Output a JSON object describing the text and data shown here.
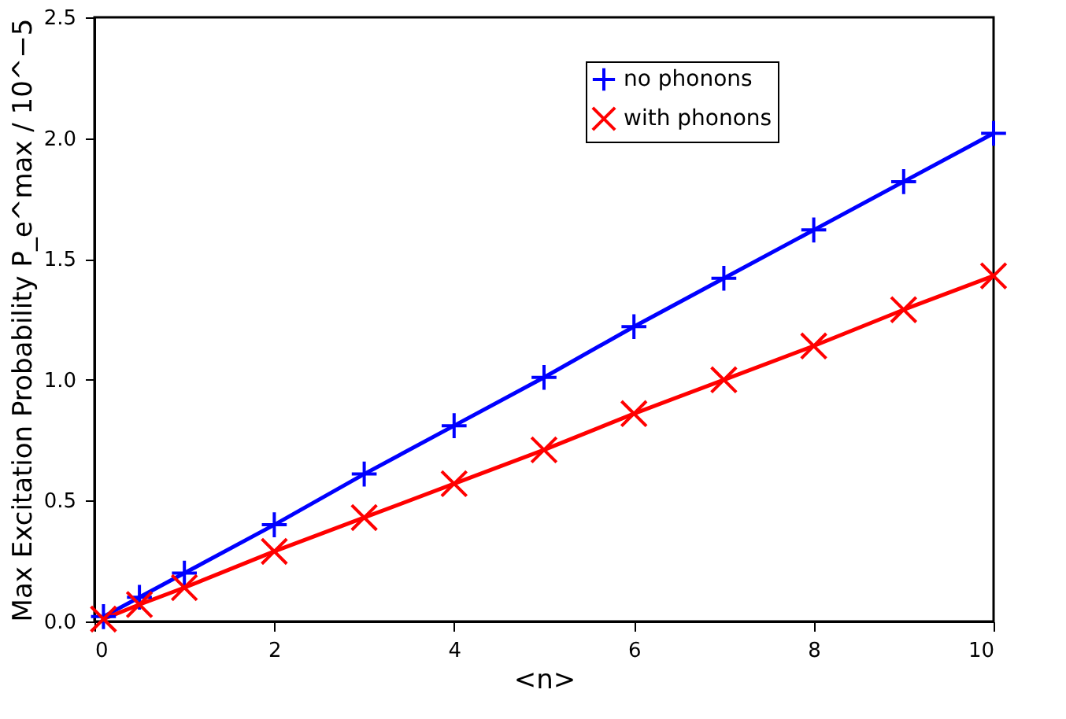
{
  "chart_data": {
    "type": "line",
    "xlabel": "<n>",
    "ylabel": "Max Excitation Probability P_e^max / 10^−5",
    "xlim": [
      0,
      10
    ],
    "xticks": [
      0,
      2,
      4,
      6,
      8,
      10
    ],
    "ylim": [
      0,
      2.5
    ],
    "yticks": [
      {
        "value": 0,
        "label": "0.0"
      },
      {
        "value": 0.5,
        "label": "0.5"
      },
      {
        "value": 1,
        "label": "1.0"
      },
      {
        "value": 1.5,
        "label": "1.5"
      },
      {
        "value": 2,
        "label": "2.0"
      },
      {
        "value": 2.5,
        "label": "2.5"
      }
    ],
    "grid": false,
    "legend": "top right",
    "series": [
      {
        "name": "no phonons",
        "color": "#0000ff",
        "marker": "cross",
        "x": [
          0.1,
          0.5,
          1,
          2,
          3,
          4,
          5,
          6,
          7,
          8,
          9,
          10
        ],
        "values": [
          0.02,
          0.1,
          0.2,
          0.4,
          0.61,
          0.81,
          1.01,
          1.22,
          1.42,
          1.62,
          1.82,
          2.02
        ]
      },
      {
        "name": "with phonons",
        "color": "#ff0000",
        "marker": "x",
        "x": [
          0.1,
          0.5,
          1,
          2,
          3,
          4,
          5,
          6,
          7,
          8,
          9,
          10
        ],
        "values": [
          0.01,
          0.07,
          0.14,
          0.29,
          0.43,
          0.57,
          0.71,
          0.86,
          1.0,
          1.14,
          1.29,
          1.43
        ]
      }
    ]
  }
}
